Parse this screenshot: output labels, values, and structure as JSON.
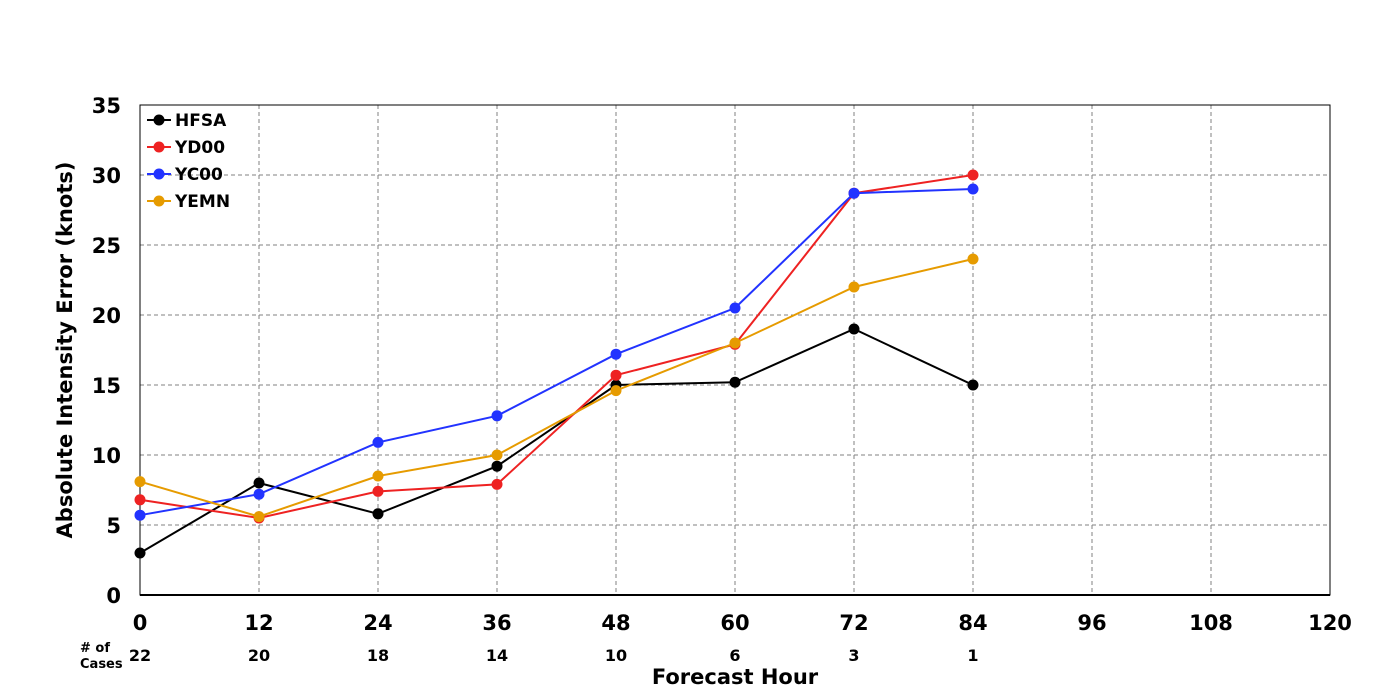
{
  "chart_data": {
    "type": "line",
    "title": "",
    "xlabel": "Forecast Hour",
    "ylabel": "Absolute Intensity Error (knots)",
    "xlim": [
      0,
      120
    ],
    "ylim": [
      0,
      35
    ],
    "x_ticks": [
      "0",
      "12",
      "24",
      "36",
      "48",
      "60",
      "72",
      "84",
      "96",
      "108",
      "120"
    ],
    "y_ticks": [
      "0",
      "5",
      "10",
      "15",
      "20",
      "25",
      "30",
      "35"
    ],
    "grid": true,
    "legend_position": "top-left",
    "x": [
      0,
      12,
      24,
      36,
      48,
      60,
      72,
      84
    ],
    "cases_label_line1": "# of",
    "cases_label_line2": "Cases",
    "cases": [
      "22",
      "20",
      "18",
      "14",
      "10",
      "6",
      "3",
      "1"
    ],
    "series": [
      {
        "name": "HFSA",
        "color": "#000000",
        "values": [
          3.0,
          8.0,
          5.8,
          9.2,
          15.0,
          15.2,
          19.0,
          15.0
        ]
      },
      {
        "name": "YD00",
        "color": "#ee2222",
        "values": [
          6.8,
          5.5,
          7.4,
          7.9,
          15.7,
          17.9,
          28.7,
          30.0
        ]
      },
      {
        "name": "YC00",
        "color": "#2233ff",
        "values": [
          5.7,
          7.2,
          10.9,
          12.8,
          17.2,
          20.5,
          28.7,
          29.0
        ]
      },
      {
        "name": "YEMN",
        "color": "#e69b00",
        "values": [
          8.1,
          5.6,
          8.5,
          10.0,
          14.6,
          18.0,
          22.0,
          24.0
        ]
      }
    ]
  }
}
